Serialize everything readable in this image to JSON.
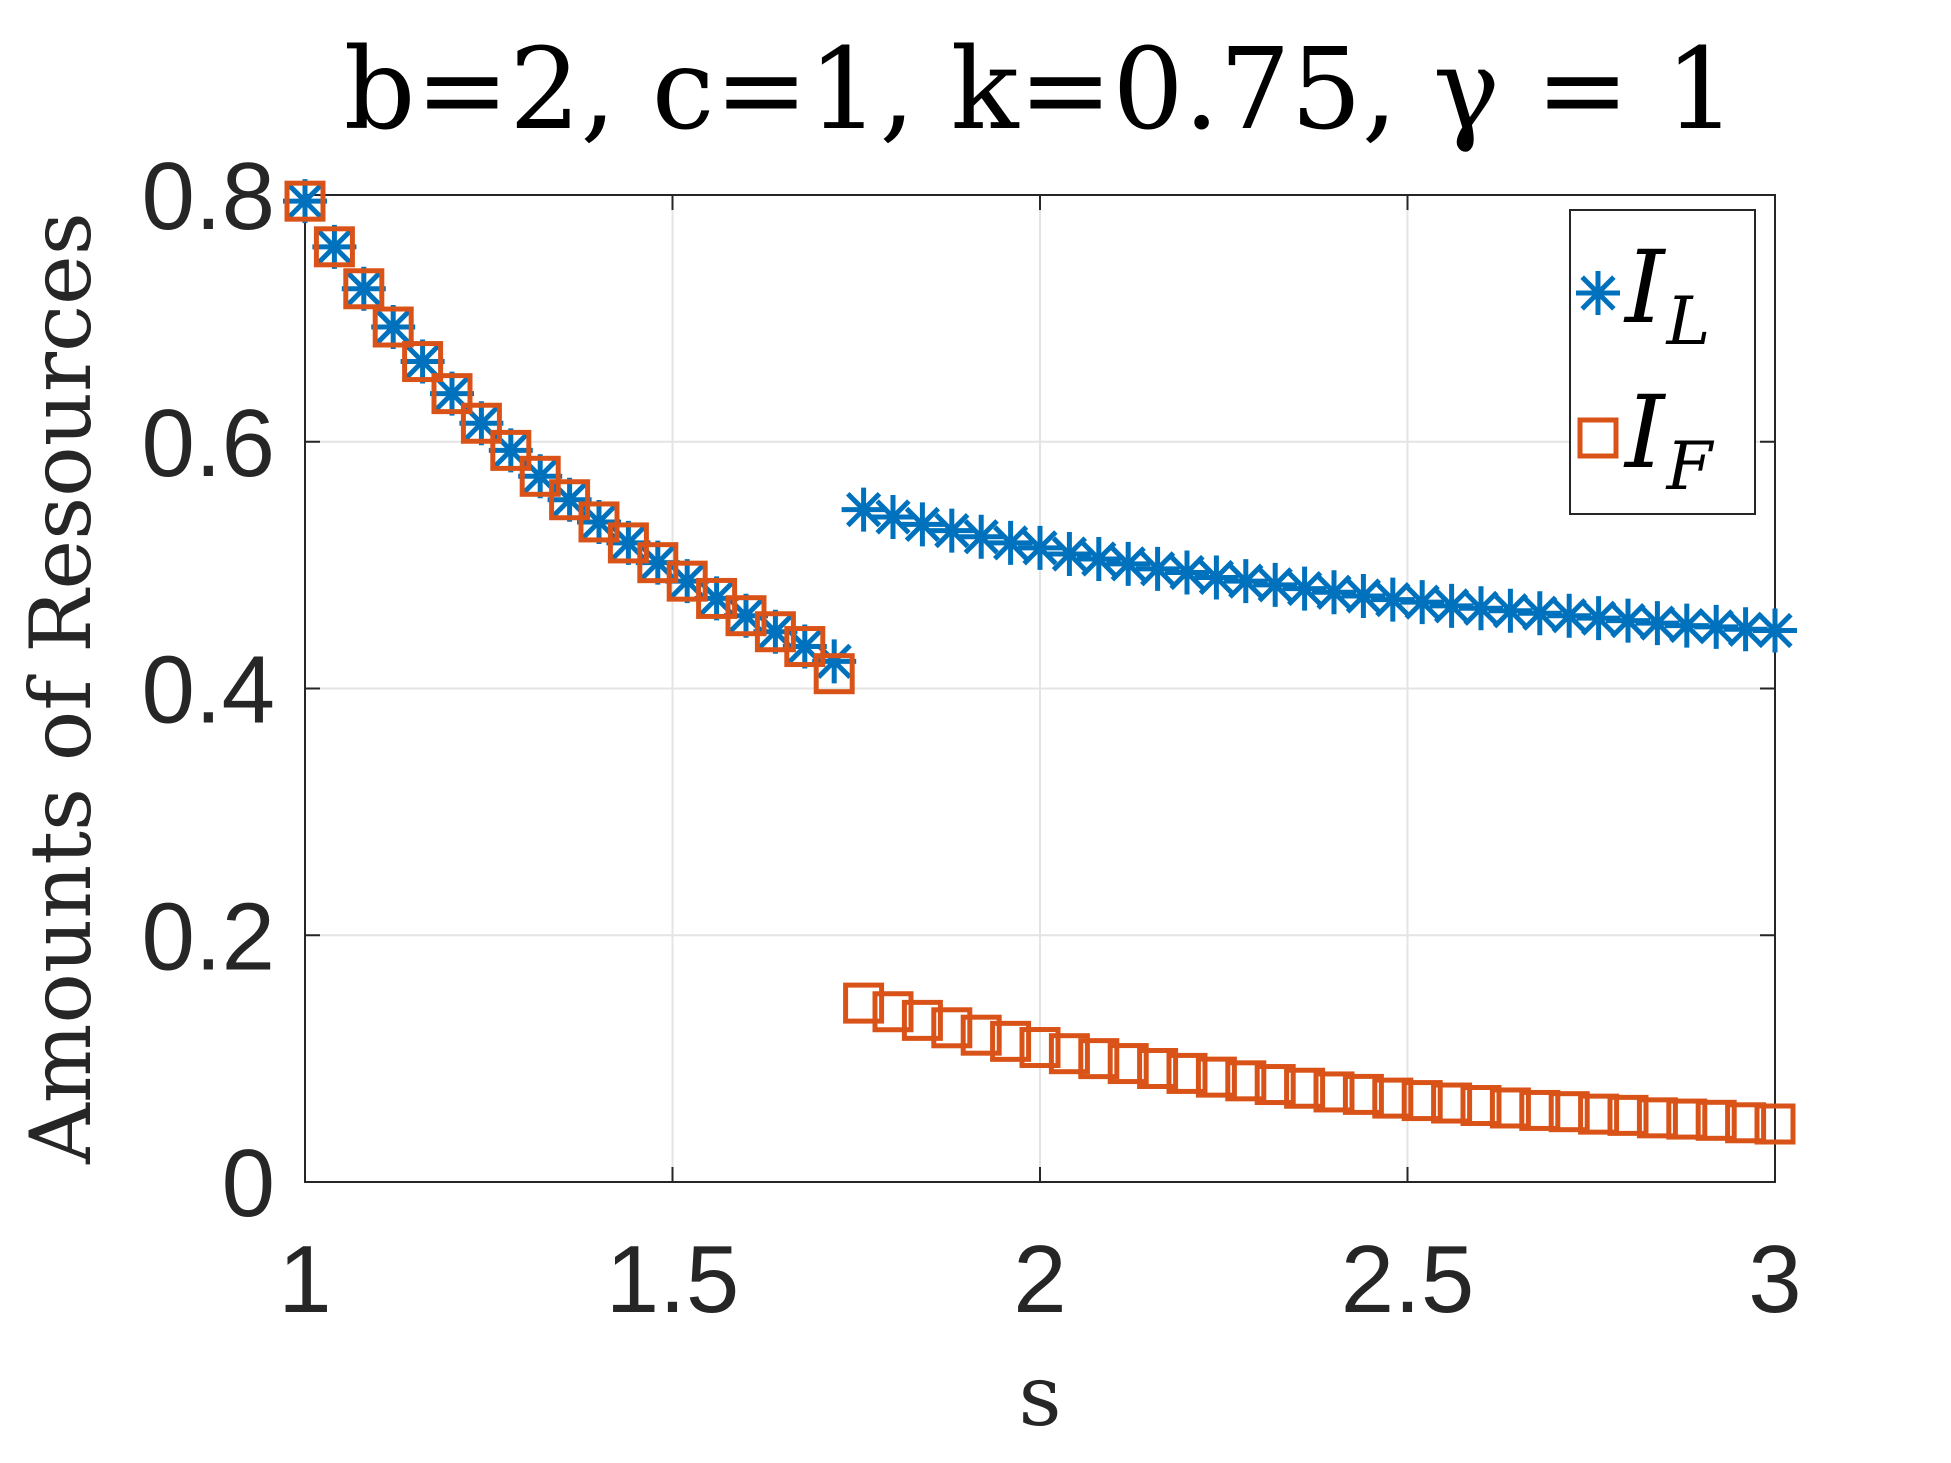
{
  "chart_data": {
    "type": "scatter",
    "title": "b=2, c=1, k=0.75, γ = 1",
    "xlabel": "s",
    "ylabel": "Amounts of Resources",
    "xlim": [
      1,
      3
    ],
    "ylim": [
      0,
      0.8
    ],
    "xticks": [
      1,
      1.5,
      2,
      2.5,
      3
    ],
    "yticks": [
      0,
      0.2,
      0.4,
      0.6,
      0.8
    ],
    "xtick_labels": [
      "1",
      "1.5",
      "2",
      "2.5",
      "3"
    ],
    "ytick_labels": [
      "0",
      "0.2",
      "0.4",
      "0.6",
      "0.8"
    ],
    "grid": true,
    "legend_position": "top-right",
    "series": [
      {
        "name": "I_L",
        "legend_main": "I",
        "legend_sub": "L",
        "marker": "asterisk",
        "color": "#0072BD",
        "x": [
          1.0,
          1.04,
          1.08,
          1.12,
          1.16,
          1.2,
          1.24,
          1.28,
          1.32,
          1.36,
          1.4,
          1.44,
          1.48,
          1.52,
          1.56,
          1.6,
          1.64,
          1.68,
          1.72,
          1.76,
          1.8,
          1.84,
          1.88,
          1.92,
          1.96,
          2.0,
          2.04,
          2.08,
          2.12,
          2.16,
          2.2,
          2.24,
          2.28,
          2.32,
          2.36,
          2.4,
          2.44,
          2.48,
          2.52,
          2.56,
          2.6,
          2.64,
          2.68,
          2.72,
          2.76,
          2.8,
          2.84,
          2.88,
          2.92,
          2.96,
          3.0
        ],
        "y": [
          0.795,
          0.758,
          0.724,
          0.693,
          0.665,
          0.639,
          0.615,
          0.593,
          0.572,
          0.553,
          0.535,
          0.518,
          0.502,
          0.487,
          0.473,
          0.459,
          0.446,
          0.434,
          0.422,
          0.545,
          0.539,
          0.533,
          0.528,
          0.523,
          0.518,
          0.514,
          0.509,
          0.505,
          0.501,
          0.497,
          0.494,
          0.49,
          0.487,
          0.484,
          0.481,
          0.478,
          0.475,
          0.472,
          0.47,
          0.467,
          0.465,
          0.463,
          0.461,
          0.459,
          0.457,
          0.455,
          0.453,
          0.451,
          0.45,
          0.448,
          0.447
        ]
      },
      {
        "name": "I_F",
        "legend_main": "I",
        "legend_sub": "F",
        "marker": "square",
        "color": "#D95319",
        "x": [
          1.0,
          1.04,
          1.08,
          1.12,
          1.16,
          1.2,
          1.24,
          1.28,
          1.32,
          1.36,
          1.4,
          1.44,
          1.48,
          1.52,
          1.56,
          1.6,
          1.64,
          1.68,
          1.72,
          1.76,
          1.8,
          1.84,
          1.88,
          1.92,
          1.96,
          2.0,
          2.04,
          2.08,
          2.12,
          2.16,
          2.2,
          2.24,
          2.28,
          2.32,
          2.36,
          2.4,
          2.44,
          2.48,
          2.52,
          2.56,
          2.6,
          2.64,
          2.68,
          2.72,
          2.76,
          2.8,
          2.84,
          2.88,
          2.92,
          2.96,
          3.0
        ],
        "y": [
          0.795,
          0.758,
          0.724,
          0.693,
          0.665,
          0.639,
          0.615,
          0.593,
          0.572,
          0.553,
          0.535,
          0.518,
          0.502,
          0.487,
          0.473,
          0.459,
          0.446,
          0.434,
          0.412,
          0.145,
          0.138,
          0.131,
          0.125,
          0.119,
          0.114,
          0.109,
          0.104,
          0.1,
          0.096,
          0.092,
          0.088,
          0.085,
          0.082,
          0.079,
          0.076,
          0.073,
          0.071,
          0.068,
          0.066,
          0.064,
          0.062,
          0.06,
          0.058,
          0.057,
          0.055,
          0.054,
          0.052,
          0.051,
          0.05,
          0.048,
          0.047
        ]
      }
    ]
  }
}
